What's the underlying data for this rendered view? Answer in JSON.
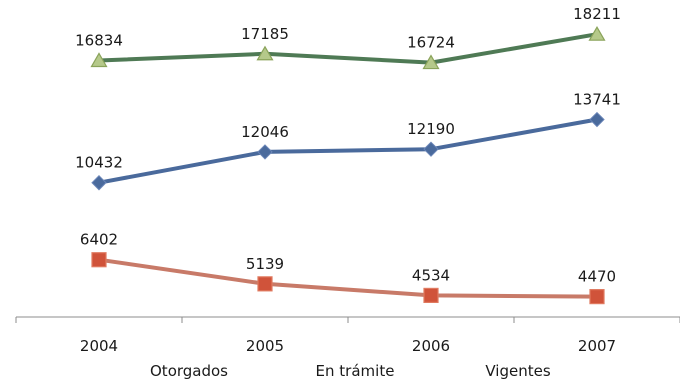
{
  "chart_data": {
    "type": "line",
    "categories": [
      "2004",
      "2005",
      "2006",
      "2007"
    ],
    "series": [
      {
        "name": "Otorgados",
        "values": [
          16834,
          17185,
          16724,
          18211
        ],
        "color": "#4f7a55",
        "marker": "triangle",
        "marker_color": "#b5c98a"
      },
      {
        "name": "En trámite",
        "values": [
          10432,
          12046,
          12190,
          13741
        ],
        "color": "#4a6a9c",
        "marker": "diamond",
        "marker_color": "#4a6a9c"
      },
      {
        "name": "Vigentes",
        "values": [
          6402,
          5139,
          4534,
          4470
        ],
        "color": "#c87a68",
        "marker": "square",
        "marker_color": "#d0533a"
      }
    ],
    "title": "",
    "xlabel": "",
    "ylabel": "",
    "ylim": [
      0,
      20000
    ],
    "grid": false,
    "legend": "bottom"
  }
}
